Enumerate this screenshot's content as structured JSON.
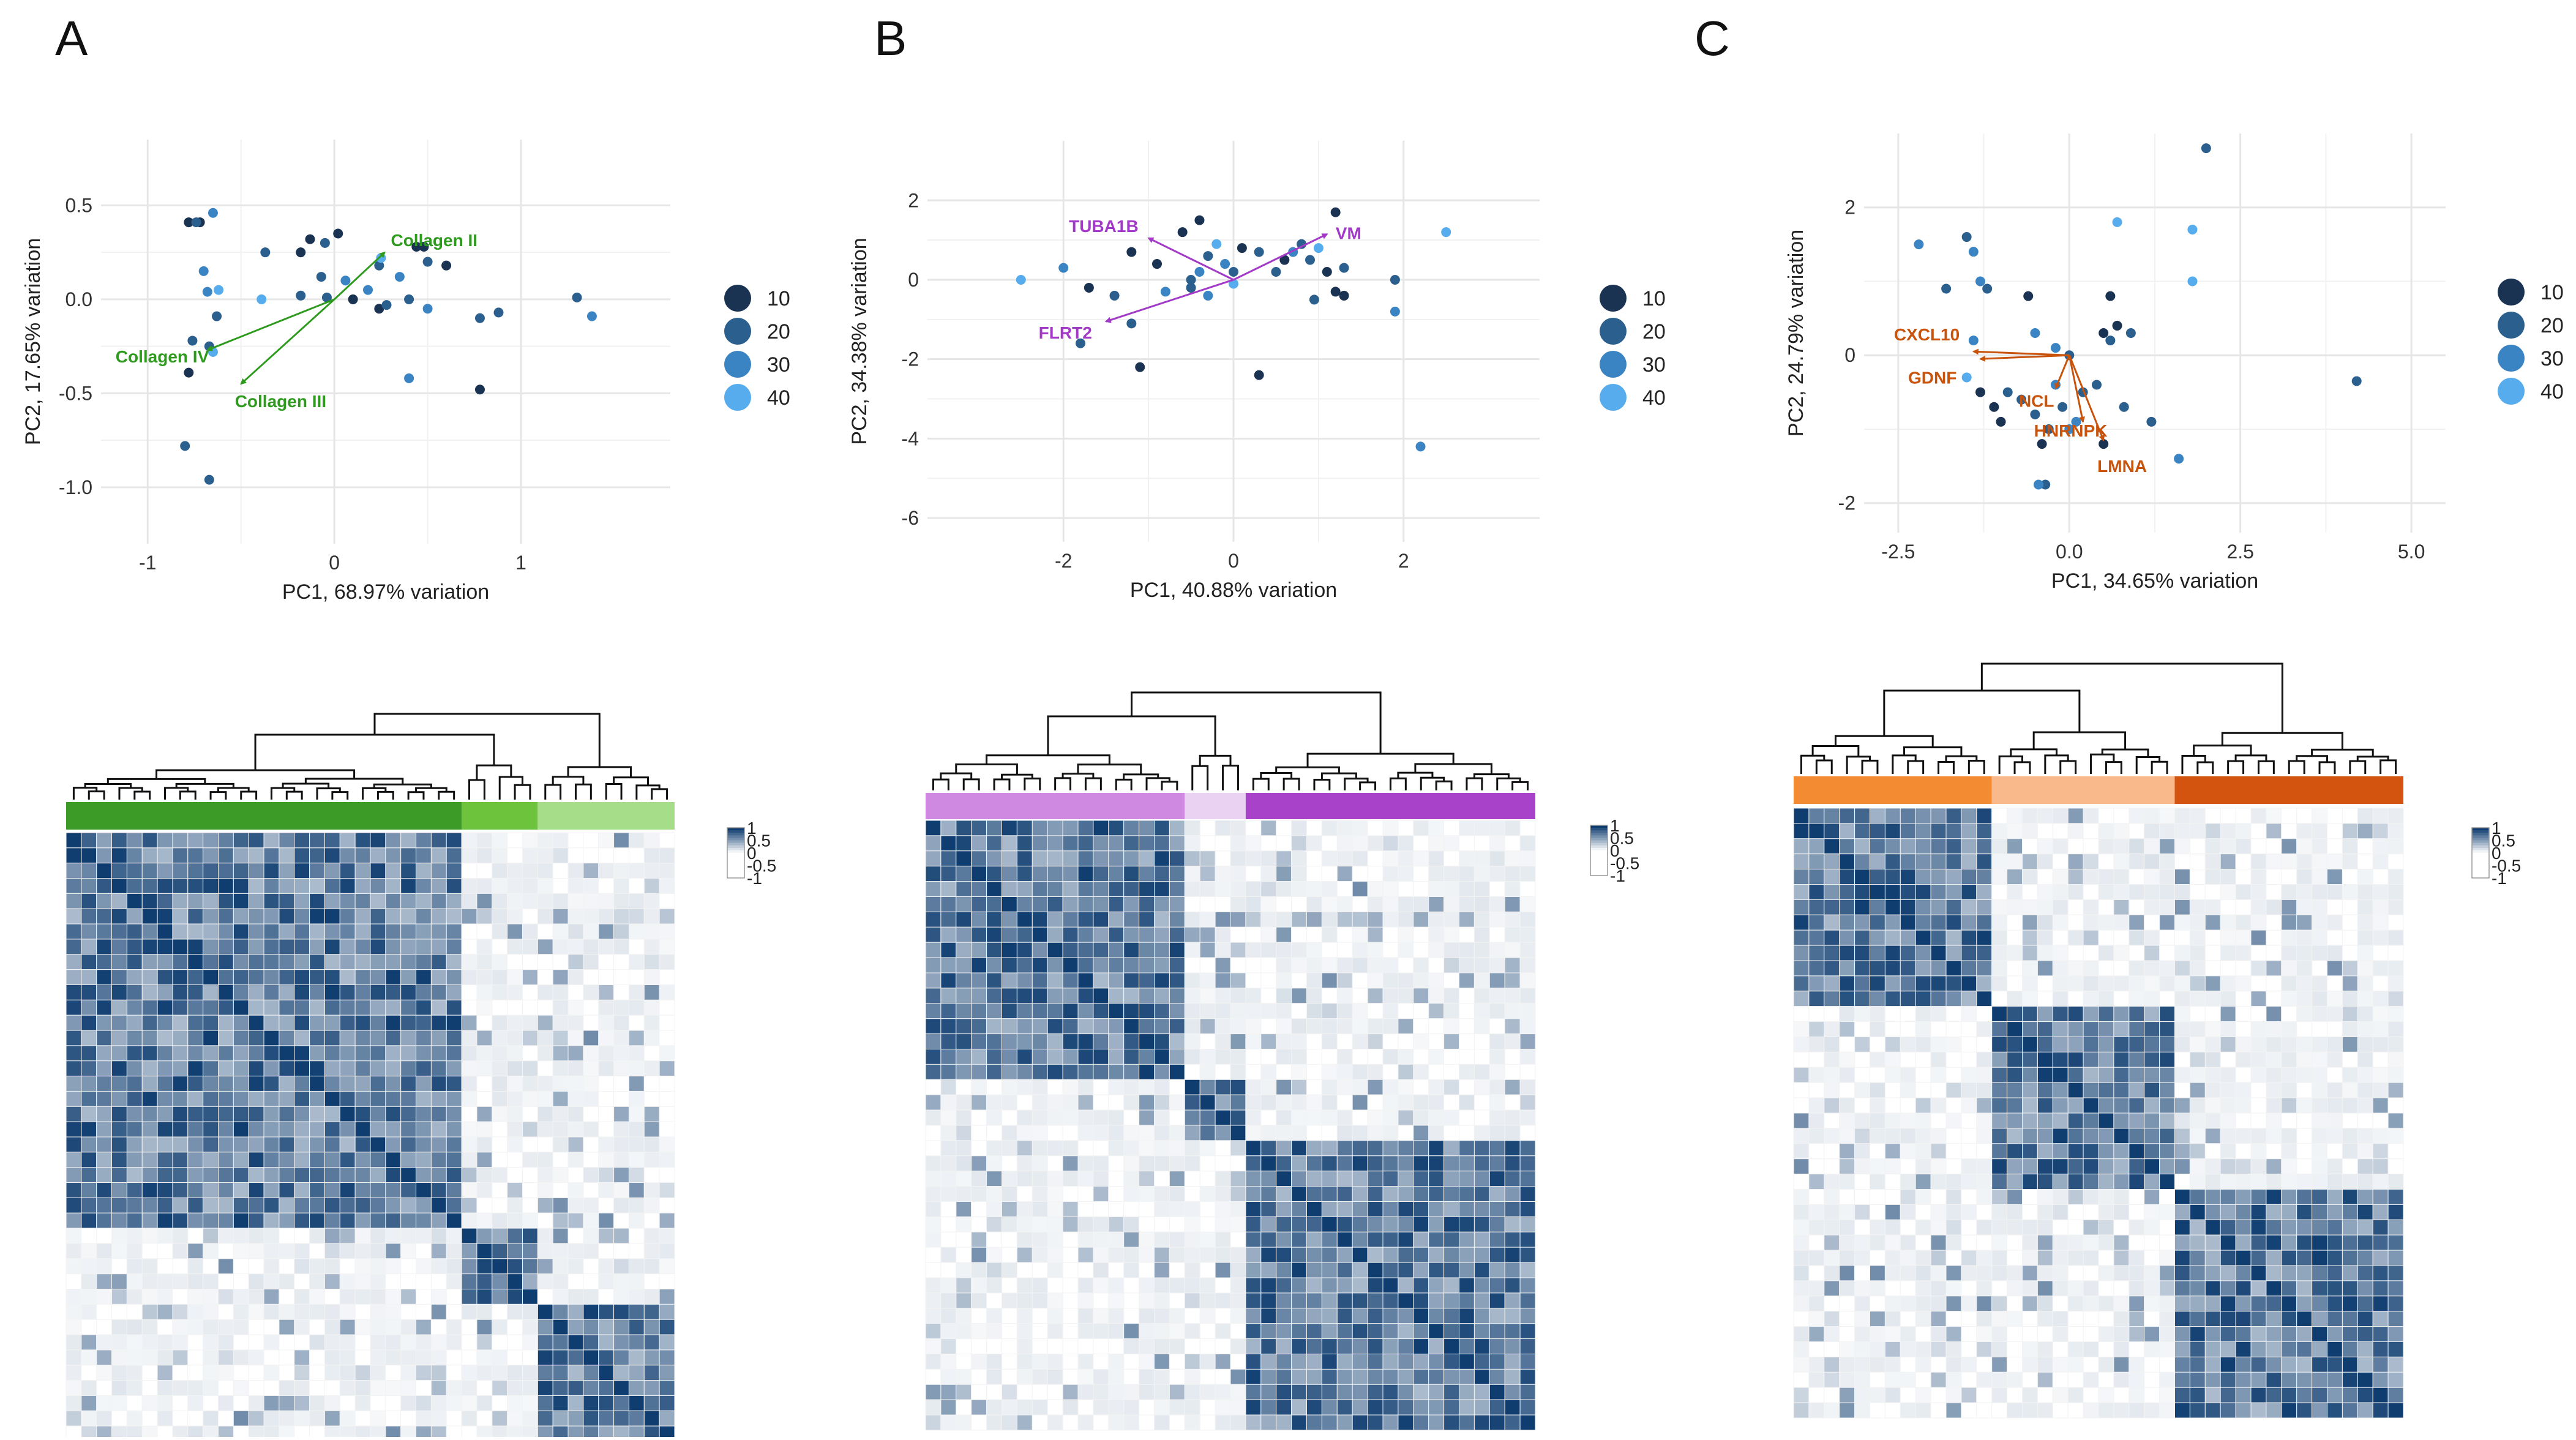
{
  "colors": {
    "pc_points": [
      "#1b3353",
      "#2b5f8e",
      "#3a84c4",
      "#56acec"
    ],
    "panelA_primary": "#2e9a1e",
    "panelA_bars": [
      "#3c9a26",
      "#6dc33b",
      "#a6dd88"
    ],
    "panelB_primary": "#a33ac7",
    "panelB_bars": [
      "#d089e1",
      "#ead3f2",
      "#a742c9"
    ],
    "panelC_primary": "#c8530c",
    "panelC_bars": [
      "#f28b32",
      "#f9b98a",
      "#d2540e"
    ],
    "heat_high": "#0f3d70",
    "grid": "#e6e6e6",
    "tree": "#111111"
  },
  "panels": [
    {
      "letter": "A",
      "pca": {
        "type": "scatter",
        "xlabel": "PC1, 68.97% variation",
        "ylabel": "PC2, 17.65% variation",
        "xlim": [
          -1.25,
          1.8
        ],
        "ylim": [
          -1.3,
          0.85
        ],
        "xticks": [
          -1,
          0,
          1
        ],
        "xtick_labels": [
          "-1",
          "0",
          "1"
        ],
        "yticks": [
          0.5,
          0.0,
          -0.5,
          -1.0
        ],
        "ytick_labels": [
          "0.5",
          "0.0",
          "-0.5",
          "-1.0"
        ],
        "grid": true,
        "legend": {
          "position": "right",
          "labels": [
            "10",
            "20",
            "30",
            "40"
          ]
        },
        "loadings": [
          {
            "label": "Collagen II",
            "x": 0.27,
            "y": 0.25
          },
          {
            "label": "Collagen IV",
            "x": -0.68,
            "y": -0.27
          },
          {
            "label": "Collagen III",
            "x": -0.5,
            "y": -0.45
          }
        ],
        "points": [
          [
            -0.78,
            0.41,
            1
          ],
          [
            -0.72,
            0.41,
            1
          ],
          [
            -0.74,
            0.41,
            2
          ],
          [
            -0.65,
            0.46,
            3
          ],
          [
            -0.7,
            0.15,
            3
          ],
          [
            -0.62,
            0.05,
            4
          ],
          [
            -0.68,
            0.04,
            3
          ],
          [
            -0.63,
            -0.09,
            2
          ],
          [
            -0.76,
            -0.22,
            2
          ],
          [
            -0.67,
            -0.25,
            2
          ],
          [
            -0.65,
            -0.28,
            4
          ],
          [
            -0.78,
            -0.39,
            1
          ],
          [
            -0.8,
            -0.78,
            2
          ],
          [
            -0.67,
            -0.96,
            2
          ],
          [
            -0.37,
            0.25,
            2
          ],
          [
            -0.18,
            0.25,
            1
          ],
          [
            -0.13,
            0.32,
            1
          ],
          [
            -0.05,
            0.3,
            2
          ],
          [
            0.02,
            0.35,
            1
          ],
          [
            -0.18,
            0.02,
            2
          ],
          [
            -0.07,
            0.12,
            2
          ],
          [
            -0.04,
            0.01,
            2
          ],
          [
            0.06,
            0.1,
            3
          ],
          [
            0.1,
            0.0,
            1
          ],
          [
            0.18,
            0.05,
            3
          ],
          [
            0.24,
            0.18,
            2
          ],
          [
            0.35,
            0.12,
            3
          ],
          [
            0.24,
            -0.05,
            1
          ],
          [
            0.28,
            -0.03,
            2
          ],
          [
            0.4,
            0.0,
            2
          ],
          [
            0.5,
            0.2,
            2
          ],
          [
            0.44,
            0.28,
            1
          ],
          [
            0.48,
            0.28,
            1
          ],
          [
            0.6,
            0.18,
            1
          ],
          [
            0.5,
            -0.05,
            3
          ],
          [
            0.4,
            -0.42,
            3
          ],
          [
            0.78,
            -0.1,
            2
          ],
          [
            0.88,
            -0.07,
            2
          ],
          [
            0.78,
            -0.48,
            1
          ],
          [
            1.3,
            0.01,
            2
          ],
          [
            1.38,
            -0.09,
            3
          ],
          [
            -0.39,
            0.0,
            4
          ],
          [
            0.25,
            0.22,
            4
          ]
        ]
      },
      "heatmap": {
        "n": 40,
        "groups": [
          {
            "start": 0,
            "end": 26,
            "color_index": 0
          },
          {
            "start": 26,
            "end": 31,
            "color_index": 1
          },
          {
            "start": 31,
            "end": 40,
            "color_index": 2
          }
        ],
        "legend_ticks": [
          "1",
          "0.5",
          "0",
          "-0.5",
          "-1"
        ]
      }
    },
    {
      "letter": "B",
      "pca": {
        "type": "scatter",
        "xlabel": "PC1, 40.88% variation",
        "ylabel": "PC2, 34.38% variation",
        "xlim": [
          -3.6,
          3.6
        ],
        "ylim": [
          -6.6,
          3.5
        ],
        "xticks": [
          -2,
          0,
          2
        ],
        "xtick_labels": [
          "-2",
          "0",
          "2"
        ],
        "yticks": [
          2,
          0,
          -2,
          -4,
          -6
        ],
        "ytick_labels": [
          "2",
          "0",
          "-2",
          "-4",
          "-6"
        ],
        "grid": true,
        "legend": {
          "position": "right",
          "labels": [
            "10",
            "20",
            "30",
            "40"
          ]
        },
        "loadings": [
          {
            "label": "TUBA1B",
            "x": -1.0,
            "y": 1.05
          },
          {
            "label": "VM",
            "x": 1.1,
            "y": 1.15
          },
          {
            "label": "FLRT2",
            "x": -1.5,
            "y": -1.05
          }
        ],
        "points": [
          [
            -2.5,
            0.0,
            4
          ],
          [
            -2.0,
            0.3,
            3
          ],
          [
            -1.8,
            -1.6,
            2
          ],
          [
            -1.7,
            -0.2,
            1
          ],
          [
            -1.4,
            -0.4,
            2
          ],
          [
            -1.2,
            -1.1,
            2
          ],
          [
            -1.2,
            0.7,
            1
          ],
          [
            -1.1,
            -2.2,
            1
          ],
          [
            -0.9,
            0.4,
            1
          ],
          [
            -0.8,
            -0.3,
            3
          ],
          [
            -0.6,
            1.2,
            1
          ],
          [
            -0.5,
            -0.2,
            2
          ],
          [
            -0.4,
            1.5,
            1
          ],
          [
            -0.4,
            0.2,
            3
          ],
          [
            -0.3,
            0.6,
            2
          ],
          [
            -0.2,
            0.9,
            4
          ],
          [
            -0.1,
            0.4,
            3
          ],
          [
            0.0,
            0.2,
            2
          ],
          [
            0.1,
            0.8,
            1
          ],
          [
            0.3,
            0.7,
            2
          ],
          [
            0.3,
            -2.4,
            1
          ],
          [
            0.5,
            0.2,
            2
          ],
          [
            0.6,
            0.5,
            1
          ],
          [
            0.7,
            0.7,
            3
          ],
          [
            0.8,
            0.9,
            2
          ],
          [
            0.9,
            0.5,
            2
          ],
          [
            1.0,
            0.8,
            4
          ],
          [
            1.1,
            0.2,
            1
          ],
          [
            1.2,
            -0.3,
            1
          ],
          [
            1.2,
            1.7,
            1
          ],
          [
            1.3,
            -0.4,
            1
          ],
          [
            1.3,
            0.3,
            2
          ],
          [
            0.95,
            -0.5,
            2
          ],
          [
            1.9,
            0.0,
            2
          ],
          [
            1.9,
            -0.8,
            3
          ],
          [
            2.2,
            -4.2,
            3
          ],
          [
            2.5,
            1.2,
            4
          ],
          [
            -0.3,
            -0.4,
            3
          ],
          [
            -0.5,
            0.0,
            2
          ],
          [
            0.0,
            -0.1,
            4
          ]
        ]
      },
      "heatmap": {
        "n": 40,
        "groups": [
          {
            "start": 0,
            "end": 17,
            "color_index": 0
          },
          {
            "start": 17,
            "end": 21,
            "color_index": 1
          },
          {
            "start": 21,
            "end": 40,
            "color_index": 2
          }
        ],
        "legend_ticks": [
          "1",
          "0.5",
          "0",
          "-0.5",
          "-1"
        ]
      }
    },
    {
      "letter": "C",
      "pca": {
        "type": "scatter",
        "xlabel": "PC1, 34.65% variation",
        "ylabel": "PC2, 24.79% variation",
        "xlim": [
          -3.0,
          5.5
        ],
        "ylim": [
          -2.4,
          3.0
        ],
        "xticks": [
          -2.5,
          0.0,
          2.5,
          5.0
        ],
        "xtick_labels": [
          "-2.5",
          "0.0",
          "2.5",
          "5.0"
        ],
        "yticks": [
          2,
          0,
          -2
        ],
        "ytick_labels": [
          "2",
          "0",
          "-2"
        ],
        "grid": true,
        "legend": {
          "position": "right",
          "labels": [
            "10",
            "20",
            "30",
            "40"
          ]
        },
        "loadings": [
          {
            "label": "CXCL10",
            "x": -1.4,
            "y": 0.05
          },
          {
            "label": "GDNF",
            "x": -1.3,
            "y": -0.05
          },
          {
            "label": "NCL",
            "x": -0.2,
            "y": -0.45
          },
          {
            "label": "HNRNPK",
            "x": 0.2,
            "y": -0.9
          },
          {
            "label": "LMNA",
            "x": 0.5,
            "y": -1.15
          }
        ],
        "points": [
          [
            -2.2,
            1.5,
            3
          ],
          [
            -1.8,
            0.9,
            2
          ],
          [
            -1.5,
            1.6,
            2
          ],
          [
            -1.4,
            1.4,
            3
          ],
          [
            -1.3,
            1.0,
            3
          ],
          [
            -1.2,
            0.9,
            2
          ],
          [
            -1.4,
            0.2,
            3
          ],
          [
            -1.5,
            -0.3,
            4
          ],
          [
            -1.3,
            -0.5,
            1
          ],
          [
            -1.1,
            -0.7,
            1
          ],
          [
            -1.0,
            -0.9,
            1
          ],
          [
            -0.9,
            -0.5,
            2
          ],
          [
            -0.7,
            -0.6,
            2
          ],
          [
            -0.5,
            0.3,
            3
          ],
          [
            -0.5,
            -0.8,
            2
          ],
          [
            -0.4,
            -1.2,
            1
          ],
          [
            -0.3,
            -1.0,
            2
          ],
          [
            -0.2,
            -0.4,
            3
          ],
          [
            -0.1,
            -0.7,
            2
          ],
          [
            0.0,
            -1.0,
            3
          ],
          [
            0.1,
            -0.9,
            3
          ],
          [
            0.2,
            -0.5,
            2
          ],
          [
            0.4,
            -0.4,
            2
          ],
          [
            0.5,
            0.3,
            1
          ],
          [
            0.6,
            0.2,
            2
          ],
          [
            0.6,
            0.8,
            1
          ],
          [
            0.7,
            0.4,
            1
          ],
          [
            0.8,
            -0.7,
            2
          ],
          [
            0.9,
            0.3,
            2
          ],
          [
            1.2,
            -0.9,
            2
          ],
          [
            1.6,
            -1.4,
            3
          ],
          [
            1.8,
            1.0,
            4
          ],
          [
            1.8,
            1.7,
            4
          ],
          [
            2.0,
            2.8,
            2
          ],
          [
            4.2,
            -0.35,
            2
          ],
          [
            0.7,
            1.8,
            4
          ],
          [
            -0.6,
            0.8,
            1
          ],
          [
            -0.35,
            -1.75,
            2
          ],
          [
            -0.45,
            -1.75,
            3
          ],
          [
            0.5,
            -1.2,
            1
          ],
          [
            0.0,
            0.0,
            2
          ],
          [
            -0.2,
            0.1,
            3
          ]
        ]
      },
      "heatmap": {
        "n": 40,
        "groups": [
          {
            "start": 0,
            "end": 13,
            "color_index": 0
          },
          {
            "start": 13,
            "end": 25,
            "color_index": 1
          },
          {
            "start": 25,
            "end": 40,
            "color_index": 2
          }
        ],
        "legend_ticks": [
          "1",
          "0.5",
          "0",
          "-0.5",
          "-1"
        ]
      }
    }
  ]
}
